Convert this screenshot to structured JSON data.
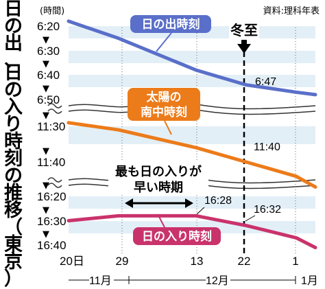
{
  "title": "日の出、日の入り時刻の推移（東京）",
  "source": "資料:理科年表",
  "chart_data": {
    "type": "line",
    "ylabel": "(時間)",
    "x": {
      "tick_labels": [
        "20日",
        "29",
        "13",
        "22",
        "1"
      ],
      "month_labels": [
        "11月",
        "12月",
        "1月"
      ]
    },
    "panels": [
      {
        "name": "sunrise",
        "yticks": [
          "6:20",
          "6:30",
          "6:40",
          "6:50"
        ],
        "ylim": [
          "6:20",
          "6:50"
        ]
      },
      {
        "name": "culmination",
        "yticks": [
          "11:30",
          "11:40"
        ],
        "ylim": [
          "11:30",
          "11:40"
        ]
      },
      {
        "name": "sunset",
        "yticks": [
          "16:20",
          "16:30",
          "16:40"
        ],
        "ylim": [
          "16:20",
          "16:40"
        ]
      }
    ],
    "series": [
      {
        "name": "日の出時刻",
        "color": "#5a6fc9",
        "panel": 0,
        "points": [
          [
            "11-20",
            "6:18"
          ],
          [
            "11-29",
            "6:25"
          ],
          [
            "12-13",
            "6:38"
          ],
          [
            "12-22",
            "6:44"
          ],
          [
            "12-31",
            "6:47"
          ],
          [
            "01-05",
            "6:48"
          ]
        ]
      },
      {
        "name": "太陽の南中時刻",
        "color": "#ec7b1a",
        "panel": 1,
        "points": [
          [
            "11-20",
            "11:29"
          ],
          [
            "11-29",
            "11:31"
          ],
          [
            "12-13",
            "11:36"
          ],
          [
            "12-22",
            "11:40"
          ],
          [
            "12-31",
            "11:44"
          ],
          [
            "01-05",
            "11:47"
          ]
        ]
      },
      {
        "name": "日の入り時刻",
        "color": "#c9336b",
        "panel": 2,
        "points": [
          [
            "11-20",
            "16:30"
          ],
          [
            "11-29",
            "16:28"
          ],
          [
            "12-13",
            "16:28"
          ],
          [
            "12-22",
            "16:32"
          ],
          [
            "12-31",
            "16:37"
          ],
          [
            "01-05",
            "16:41"
          ]
        ]
      }
    ],
    "annotations": [
      {
        "text": "冬至",
        "x": "12-22"
      },
      {
        "text": "6:47",
        "series": "日の出時刻"
      },
      {
        "text": "11:40",
        "series": "太陽の南中時刻"
      },
      {
        "text": "16:28",
        "series": "日の入り時刻"
      },
      {
        "text": "16:32",
        "series": "日の入り時刻"
      },
      {
        "text": "最も日の入りが 早い時期",
        "x_range": [
          "11-29",
          "12-13"
        ]
      }
    ],
    "colors": {
      "band": "#e3eff7",
      "sunrise": "#5a6fc9",
      "culmination": "#ec7b1a",
      "sunset": "#c9336b"
    }
  }
}
